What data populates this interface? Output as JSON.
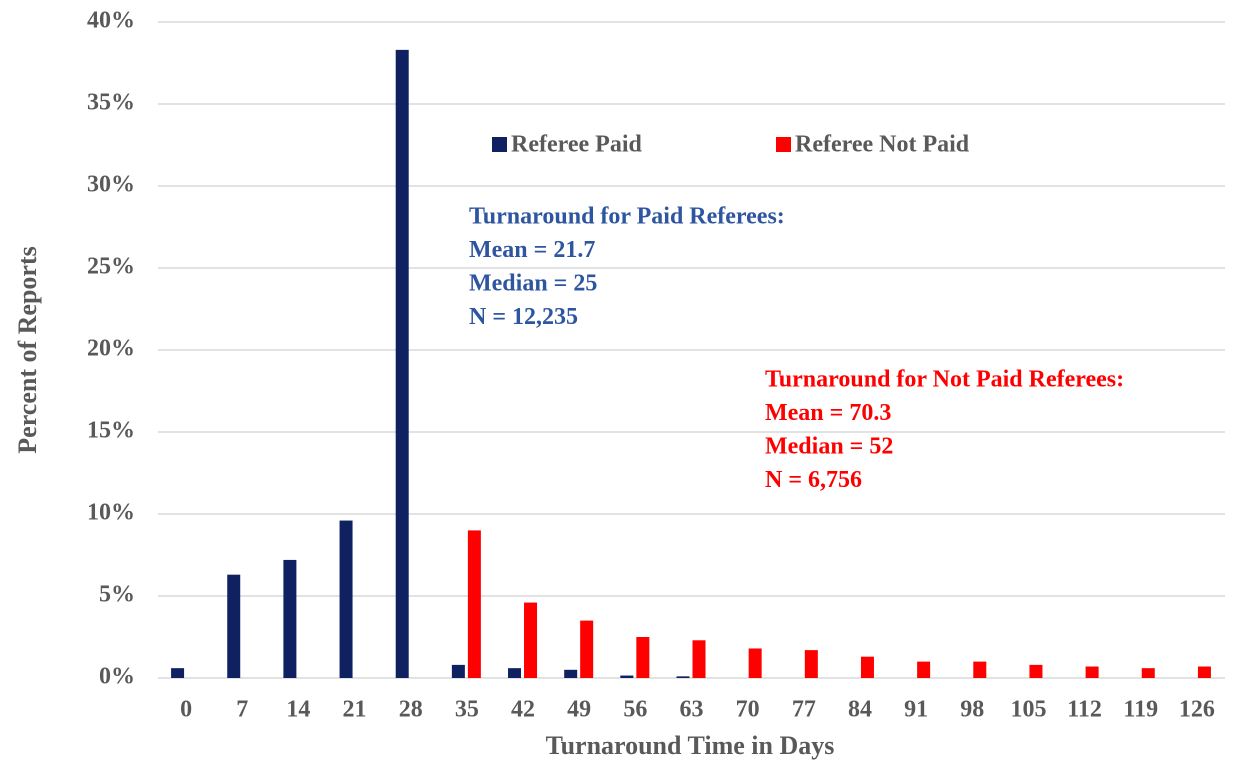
{
  "chart_data": {
    "type": "bar",
    "x_label": "Turnaround Time in Days",
    "y_label": "Percent of Reports",
    "categories": [
      "0",
      "7",
      "14",
      "21",
      "28",
      "35",
      "42",
      "49",
      "56",
      "63",
      "70",
      "77",
      "84",
      "91",
      "98",
      "105",
      "112",
      "119",
      "126"
    ],
    "series": [
      {
        "name": "Referee Paid",
        "color": "#0f2160",
        "values": [
          0.6,
          6.3,
          7.2,
          9.6,
          38.3,
          0.8,
          0.6,
          0.5,
          0.15,
          0.1,
          0,
          0,
          0,
          0,
          0,
          0,
          0,
          0,
          0
        ]
      },
      {
        "name": "Referee Not Paid",
        "color": "#ff0000",
        "values": [
          0,
          0,
          0,
          0,
          0,
          9.0,
          4.6,
          3.5,
          2.5,
          2.3,
          1.8,
          1.7,
          1.3,
          1.0,
          1.0,
          0.8,
          0.7,
          0.6,
          0.7
        ]
      }
    ],
    "ylim": [
      0,
      40
    ],
    "yticks": [
      {
        "value": 0,
        "label": "0%"
      },
      {
        "value": 5,
        "label": "5%"
      },
      {
        "value": 10,
        "label": "10%"
      },
      {
        "value": 15,
        "label": "15%"
      },
      {
        "value": 20,
        "label": "20%"
      },
      {
        "value": 25,
        "label": "25%"
      },
      {
        "value": 30,
        "label": "30%"
      },
      {
        "value": 35,
        "label": "35%"
      },
      {
        "value": 40,
        "label": "40%"
      }
    ],
    "grid": true,
    "annotations": [
      {
        "color": "#2e55a0",
        "lines": [
          "Turnaround for Paid Referees:",
          "Mean = 21.7",
          "Median = 25",
          "N = 12,235"
        ]
      },
      {
        "color": "#ff0000",
        "lines": [
          "Turnaround for Not Paid Referees:",
          "Mean = 70.3",
          "Median = 52",
          "N = 6,756"
        ]
      }
    ]
  }
}
